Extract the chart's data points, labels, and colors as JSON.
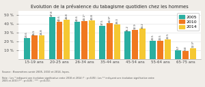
{
  "title": "Evolution de la prévalence du tabagisme quotidien chez les hommes",
  "categories": [
    "15-19 ans",
    "20-25 ans",
    "26-34 ans",
    "35-44 ans",
    "45-54 ans",
    "55-64 ans",
    "65-75 ans"
  ],
  "series": {
    "2005": [
      23.6,
      47.8,
      42.6,
      37.5,
      31.2,
      20.5,
      9.7
    ],
    "2010": [
      26.5,
      42.6,
      43.1,
      40.9,
      32.9,
      20.5,
      9.0
    ],
    "2014": [
      26.8,
      44.8,
      43.8,
      39.3,
      34.2,
      22.5,
      12.3
    ]
  },
  "colors": {
    "2005": "#2aaea0",
    "2010": "#f07820",
    "2014": "#f5c832"
  },
  "ylim": [
    0,
    55
  ],
  "yticks": [
    10,
    20,
    30,
    40,
    50
  ],
  "bar_value_labels": {
    "2005": [
      "23.6",
      "47.8",
      "42.6",
      "37.5",
      "31.2",
      "20.5",
      "9.7"
    ],
    "2010": [
      "26.5",
      "42.6",
      "43.1*",
      "40.9*",
      "32.9",
      "20.5",
      "9.0"
    ],
    "2014": [
      "26.8",
      "44.8",
      "43.8",
      "39.3",
      "34.2",
      "22.5",
      "12.3*"
    ]
  },
  "source_text": "Source : Baromètres santé 2005, 2010 et 2014, Inpes.",
  "note_text": "Note : Les * indiquent une évolution significative entre 2010 et 2014 (* : p<0,05). Les ** indiquent une évolution significative entre\n2005 et 2010 (** : p<0,05 ; *** : p<0,01).",
  "bg_color": "#f0ede8",
  "plot_bg_color": "#ffffff",
  "border_color": "#cccccc"
}
